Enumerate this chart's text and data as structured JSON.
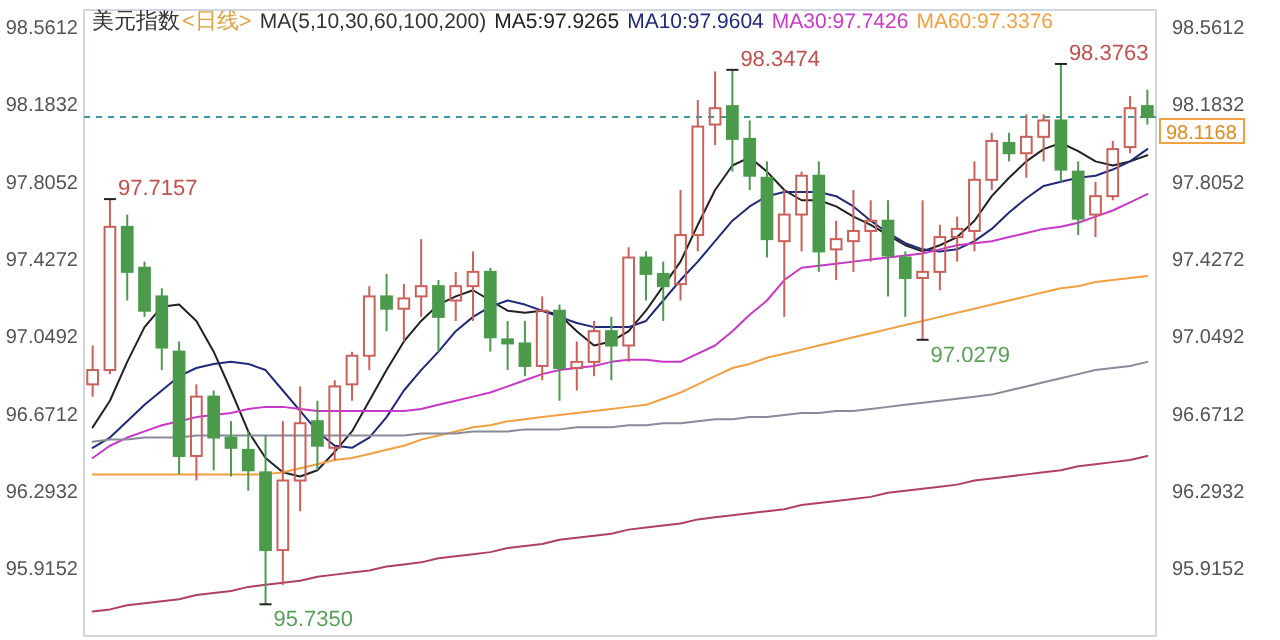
{
  "chart_data": {
    "type": "candlestick",
    "title": "美元指数",
    "subtitle": "<日线>",
    "legend_title": "MA(5,10,30,60,100,200)",
    "legend": "top",
    "marker": "none",
    "tick_labels": "y",
    "grid": false,
    "categories": [
      null,
      null,
      null,
      null,
      null,
      null,
      null,
      null,
      null,
      null,
      null,
      null,
      null,
      null,
      null,
      null,
      null,
      null,
      null,
      null,
      null,
      null,
      null,
      null,
      null,
      null,
      null,
      null,
      null,
      null,
      null,
      null,
      null,
      null,
      null,
      null,
      null,
      null,
      null,
      null,
      null,
      null,
      null,
      null,
      null,
      null,
      null,
      null,
      null,
      null,
      null,
      null,
      null,
      null,
      null,
      null,
      null,
      null,
      null,
      null,
      null,
      null
    ],
    "ohlc": [
      [
        96.81,
        97.0,
        96.75,
        96.88
      ],
      [
        96.88,
        97.7157,
        96.86,
        97.58
      ],
      [
        97.58,
        97.64,
        97.22,
        97.36
      ],
      [
        97.38,
        97.41,
        97.14,
        97.17
      ],
      [
        97.24,
        97.28,
        96.88,
        96.99
      ],
      [
        96.97,
        97.02,
        96.37,
        96.46
      ],
      [
        96.46,
        96.81,
        96.34,
        96.75
      ],
      [
        96.75,
        96.78,
        96.39,
        96.55
      ],
      [
        96.55,
        96.63,
        96.36,
        96.5
      ],
      [
        96.49,
        96.58,
        96.29,
        96.39
      ],
      [
        96.38,
        96.56,
        95.735,
        96.0
      ],
      [
        96.0,
        96.63,
        95.83,
        96.34
      ],
      [
        96.34,
        96.8,
        96.19,
        96.62
      ],
      [
        96.63,
        96.73,
        96.39,
        96.51
      ],
      [
        96.5,
        96.83,
        96.44,
        96.8
      ],
      [
        96.81,
        96.97,
        96.73,
        96.95
      ],
      [
        96.95,
        97.29,
        96.88,
        97.24
      ],
      [
        97.24,
        97.35,
        97.07,
        97.18
      ],
      [
        97.18,
        97.3,
        97.02,
        97.23
      ],
      [
        97.24,
        97.52,
        97.14,
        97.29
      ],
      [
        97.29,
        97.32,
        96.97,
        97.14
      ],
      [
        97.22,
        97.36,
        97.12,
        97.29
      ],
      [
        97.29,
        97.46,
        97.12,
        97.36
      ],
      [
        97.36,
        97.38,
        96.97,
        97.04
      ],
      [
        97.03,
        97.12,
        96.88,
        97.01
      ],
      [
        97.01,
        97.12,
        96.85,
        96.9
      ],
      [
        96.9,
        97.24,
        96.83,
        97.17
      ],
      [
        97.17,
        97.2,
        96.73,
        96.89
      ],
      [
        96.89,
        97.02,
        96.78,
        96.92
      ],
      [
        96.92,
        97.12,
        96.85,
        97.07
      ],
      [
        97.07,
        97.14,
        96.83,
        97.0
      ],
      [
        97.0,
        97.48,
        96.92,
        97.43
      ],
      [
        97.43,
        97.46,
        97.22,
        97.35
      ],
      [
        97.35,
        97.41,
        97.12,
        97.29
      ],
      [
        97.3,
        97.76,
        97.22,
        97.54
      ],
      [
        97.54,
        98.2,
        97.46,
        98.07
      ],
      [
        98.08,
        98.34,
        97.98,
        98.16
      ],
      [
        98.17,
        98.3474,
        97.85,
        98.01
      ],
      [
        98.01,
        98.1,
        97.76,
        97.83
      ],
      [
        97.82,
        97.9,
        97.43,
        97.52
      ],
      [
        97.51,
        97.76,
        97.14,
        97.64
      ],
      [
        97.64,
        97.85,
        97.46,
        97.83
      ],
      [
        97.83,
        97.9,
        97.36,
        97.46
      ],
      [
        97.47,
        97.61,
        97.32,
        97.52
      ],
      [
        97.51,
        97.76,
        97.36,
        97.56
      ],
      [
        97.56,
        97.71,
        97.41,
        97.61
      ],
      [
        97.61,
        97.71,
        97.24,
        97.44
      ],
      [
        97.43,
        97.46,
        97.14,
        97.33
      ],
      [
        97.33,
        97.71,
        97.0279,
        97.36
      ],
      [
        97.36,
        97.59,
        97.27,
        97.53
      ],
      [
        97.53,
        97.63,
        97.41,
        97.57
      ],
      [
        97.56,
        97.9,
        97.46,
        97.81
      ],
      [
        97.81,
        98.04,
        97.76,
        98.0
      ],
      [
        97.99,
        98.04,
        97.9,
        97.94
      ],
      [
        97.94,
        98.13,
        97.82,
        98.02
      ],
      [
        98.02,
        98.13,
        97.9,
        98.1
      ],
      [
        98.1,
        98.3763,
        97.8,
        97.86
      ],
      [
        97.85,
        97.9,
        97.54,
        97.62
      ],
      [
        97.64,
        97.8,
        97.53,
        97.73
      ],
      [
        97.73,
        98.0,
        97.71,
        97.96
      ],
      [
        97.97,
        98.22,
        97.94,
        98.16
      ],
      [
        98.17,
        98.25,
        98.08,
        98.1168
      ]
    ],
    "colors": [
      "#c9605a",
      "#c9605a",
      "#4c9a4c",
      "#4c9a4c",
      "#4c9a4c",
      "#4c9a4c",
      "#c9605a",
      "#4c9a4c",
      "#4c9a4c",
      "#4c9a4c",
      "#4c9a4c",
      "#c9605a",
      "#c9605a",
      "#4c9a4c",
      "#c9605a",
      "#c9605a",
      "#c9605a",
      "#4c9a4c",
      "#c9605a",
      "#c9605a",
      "#4c9a4c",
      "#c9605a",
      "#c9605a",
      "#4c9a4c",
      "#4c9a4c",
      "#4c9a4c",
      "#c9605a",
      "#4c9a4c",
      "#c9605a",
      "#c9605a",
      "#4c9a4c",
      "#c9605a",
      "#4c9a4c",
      "#4c9a4c",
      "#c9605a",
      "#c9605a",
      "#c9605a",
      "#4c9a4c",
      "#4c9a4c",
      "#4c9a4c",
      "#c9605a",
      "#c9605a",
      "#4c9a4c",
      "#c9605a",
      "#c9605a",
      "#c9605a",
      "#4c9a4c",
      "#4c9a4c",
      "#c9605a",
      "#c9605a",
      "#c9605a",
      "#c9605a",
      "#c9605a",
      "#4c9a4c",
      "#c9605a",
      "#c9605a",
      "#4c9a4c",
      "#4c9a4c",
      "#c9605a",
      "#c9605a",
      "#c9605a",
      "#4c9a4c"
    ],
    "series": [
      {
        "type": "line",
        "name": "MA5:97.9265",
        "color": "#222222",
        "values": [
          96.6,
          96.73,
          96.92,
          97.09,
          97.19,
          97.2,
          97.12,
          96.97,
          96.78,
          96.58,
          96.45,
          96.38,
          96.36,
          96.39,
          96.48,
          96.58,
          96.73,
          96.88,
          97.02,
          97.12,
          97.2,
          97.24,
          97.27,
          97.22,
          97.17,
          97.16,
          97.17,
          97.15,
          97.07,
          97.0,
          97.02,
          97.07,
          97.17,
          97.29,
          97.41,
          97.59,
          97.76,
          97.88,
          97.92,
          97.85,
          97.76,
          97.71,
          97.71,
          97.68,
          97.63,
          97.59,
          97.54,
          97.49,
          97.46,
          97.49,
          97.53,
          97.61,
          97.73,
          97.82,
          97.9,
          97.96,
          97.99,
          97.95,
          97.9,
          97.88,
          97.9,
          97.93
        ]
      },
      {
        "type": "line",
        "name": "MA10:97.9604",
        "color": "#1f2a7a",
        "values": [
          96.5,
          96.55,
          96.63,
          96.71,
          96.78,
          96.85,
          96.89,
          96.91,
          96.92,
          96.91,
          96.88,
          96.78,
          96.68,
          96.58,
          96.51,
          96.5,
          96.55,
          96.65,
          96.78,
          96.88,
          96.97,
          97.07,
          97.14,
          97.19,
          97.22,
          97.2,
          97.17,
          97.14,
          97.11,
          97.09,
          97.09,
          97.09,
          97.12,
          97.22,
          97.32,
          97.41,
          97.51,
          97.61,
          97.68,
          97.73,
          97.75,
          97.75,
          97.75,
          97.73,
          97.68,
          97.61,
          97.55,
          97.5,
          97.47,
          97.46,
          97.47,
          97.51,
          97.57,
          97.65,
          97.72,
          97.78,
          97.8,
          97.82,
          97.83,
          97.86,
          97.9,
          97.96
        ]
      },
      {
        "type": "line",
        "name": "MA30:97.7426",
        "color": "#c838c8",
        "values": [
          96.45,
          96.51,
          96.55,
          96.58,
          96.61,
          96.63,
          96.65,
          96.66,
          96.67,
          96.69,
          96.7,
          96.7,
          96.69,
          96.68,
          96.68,
          96.68,
          96.68,
          96.68,
          96.68,
          96.69,
          96.71,
          96.73,
          96.75,
          96.77,
          96.8,
          96.83,
          96.86,
          96.88,
          96.89,
          96.9,
          96.92,
          96.93,
          96.93,
          96.92,
          96.92,
          96.96,
          97.0,
          97.07,
          97.15,
          97.22,
          97.32,
          97.38,
          97.39,
          97.4,
          97.41,
          97.42,
          97.43,
          97.44,
          97.45,
          97.47,
          97.49,
          97.5,
          97.51,
          97.53,
          97.55,
          97.57,
          97.58,
          97.6,
          97.63,
          97.66,
          97.7,
          97.74
        ]
      },
      {
        "type": "line",
        "name": "MA60:97.3376",
        "color": "#f0a040",
        "values": [
          96.37,
          96.37,
          96.37,
          96.37,
          96.37,
          96.37,
          96.37,
          96.37,
          96.37,
          96.37,
          96.37,
          96.38,
          96.4,
          96.42,
          96.44,
          96.45,
          96.47,
          96.49,
          96.51,
          96.54,
          96.56,
          96.58,
          96.6,
          96.61,
          96.63,
          96.64,
          96.65,
          96.66,
          96.67,
          96.68,
          96.69,
          96.7,
          96.71,
          96.74,
          96.77,
          96.81,
          96.85,
          96.89,
          96.91,
          96.94,
          96.96,
          96.98,
          97.0,
          97.02,
          97.04,
          97.06,
          97.08,
          97.1,
          97.12,
          97.14,
          97.16,
          97.18,
          97.2,
          97.22,
          97.24,
          97.26,
          97.28,
          97.29,
          97.31,
          97.32,
          97.33,
          97.34
        ]
      },
      {
        "type": "line",
        "color": "#8a8a9a",
        "values": [
          96.53,
          96.54,
          96.54,
          96.55,
          96.55,
          96.55,
          96.56,
          96.56,
          96.56,
          96.56,
          96.56,
          96.56,
          96.56,
          96.56,
          96.56,
          96.56,
          96.56,
          96.56,
          96.56,
          96.57,
          96.57,
          96.57,
          96.58,
          96.58,
          96.58,
          96.59,
          96.59,
          96.59,
          96.6,
          96.6,
          96.6,
          96.61,
          96.61,
          96.62,
          96.62,
          96.63,
          96.64,
          96.64,
          96.65,
          96.65,
          96.66,
          96.67,
          96.67,
          96.68,
          96.68,
          96.69,
          96.7,
          96.71,
          96.72,
          96.73,
          96.74,
          96.75,
          96.76,
          96.78,
          96.8,
          96.82,
          96.84,
          96.86,
          96.88,
          96.89,
          96.9,
          96.92
        ]
      },
      {
        "type": "line",
        "color": "#b04060",
        "values": [
          95.7,
          95.71,
          95.73,
          95.74,
          95.75,
          95.76,
          95.78,
          95.79,
          95.8,
          95.82,
          95.83,
          95.84,
          95.85,
          95.87,
          95.88,
          95.89,
          95.9,
          95.92,
          95.93,
          95.94,
          95.96,
          95.97,
          95.98,
          95.99,
          96.01,
          96.02,
          96.03,
          96.05,
          96.06,
          96.07,
          96.08,
          96.1,
          96.11,
          96.12,
          96.13,
          96.15,
          96.16,
          96.17,
          96.18,
          96.19,
          96.2,
          96.22,
          96.23,
          96.24,
          96.25,
          96.26,
          96.28,
          96.29,
          96.3,
          96.31,
          96.32,
          96.34,
          96.35,
          96.36,
          96.37,
          96.38,
          96.39,
          96.41,
          96.42,
          96.43,
          96.44,
          96.46
        ]
      }
    ],
    "ylim": [
      95.58,
      98.64
    ],
    "yticks": [
      95.9152,
      96.2932,
      96.6712,
      97.0492,
      97.4272,
      97.8052,
      98.1832,
      98.5612
    ],
    "y2lim": [
      95.58,
      98.64
    ],
    "y2ticks": [
      95.9152,
      96.2932,
      96.6712,
      97.0492,
      97.4272,
      97.8052,
      98.1832,
      98.5612
    ],
    "ref_lines": [
      {
        "axis": "y2",
        "value": 98.1168,
        "label": "98.1168",
        "color": "#3a9aa0",
        "line_style": "dashed"
      }
    ],
    "annotations": [
      "97.7157",
      "95.7350",
      "98.3474",
      "97.0279",
      "98.3763"
    ]
  }
}
